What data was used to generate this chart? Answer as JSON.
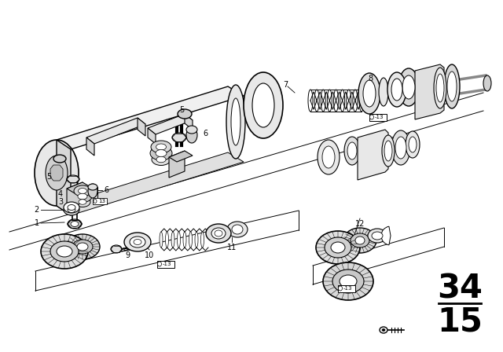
{
  "background_color": "#ffffff",
  "line_color": "#000000",
  "figsize": [
    6.4,
    4.48
  ],
  "dpi": 100,
  "section_top": "34",
  "section_bot": "15",
  "ref13_label": "-13",
  "parts": {
    "1": "1",
    "2": "2",
    "3": "3",
    "4": "4",
    "5a": "5",
    "5b": "5",
    "6a": "6",
    "6b": "6",
    "7": "7",
    "8": "8",
    "9": "9",
    "10": "10",
    "11": "11",
    "12": "12"
  }
}
